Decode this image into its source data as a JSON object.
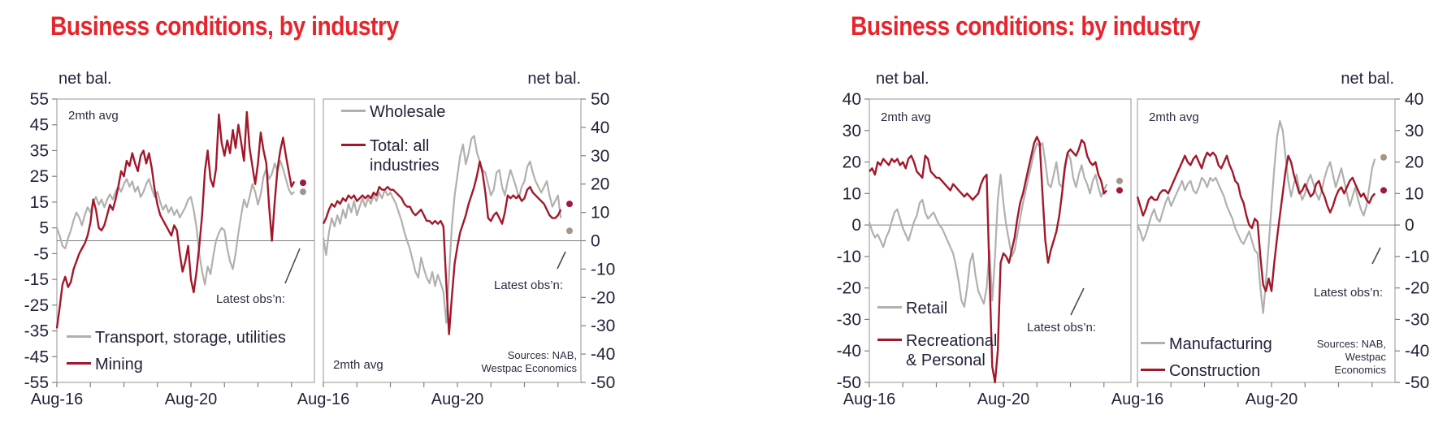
{
  "titles": {
    "left": "Business conditions, by industry",
    "right": "Business conditions: by industry"
  },
  "colors": {
    "title": "#e8232b",
    "text": "#23223a",
    "gray_line": "#b1b0af",
    "red_line": "#a2182a",
    "gray_dot": "#a39689",
    "red_dot": "#9e1a3e",
    "axis": "#a6a6a6",
    "zero_line": "#808080",
    "annotation": "#4a4a52"
  },
  "chart_data": [
    {
      "type": "line",
      "panel": "transport-mining",
      "unit_label": "net bal.",
      "avg_label": "2mth avg",
      "latest_label": "Latest obs’n:",
      "ylim": [
        -55,
        55
      ],
      "y_ticks": [
        55,
        45,
        35,
        25,
        15,
        5,
        -5,
        -15,
        -25,
        -35,
        -45,
        -55
      ],
      "x_labels": [
        {
          "text": "Aug-16",
          "month": 0
        },
        {
          "text": "Aug-20",
          "month": 48
        }
      ],
      "x_tick_interval_months": 12,
      "x_tick_count": 8,
      "series": [
        {
          "name": "Transport, storage, utilities",
          "color_key": "gray_line",
          "values": [
            5,
            2,
            -2,
            -3,
            1,
            4,
            8,
            11,
            9,
            6,
            10,
            13,
            11,
            15,
            17,
            14,
            16,
            13,
            16,
            18,
            16,
            19,
            21,
            19,
            22,
            24,
            21,
            23,
            19,
            21,
            17,
            19,
            22,
            24,
            20,
            17,
            19,
            15,
            12,
            14,
            11,
            13,
            10,
            12,
            9,
            11,
            13,
            16,
            17,
            12,
            5,
            -5,
            -12,
            -17,
            -10,
            -13,
            -6,
            0,
            3,
            5,
            4,
            -3,
            -8,
            -11,
            -5,
            3,
            10,
            16,
            13,
            17,
            22,
            19,
            14,
            18,
            25,
            28,
            24,
            26,
            30,
            27,
            31,
            28,
            24,
            20,
            18,
            19
          ]
        },
        {
          "name": "Mining",
          "color_key": "red_line",
          "values": [
            -34,
            -26,
            -17,
            -14,
            -18,
            -16,
            -11,
            -8,
            -5,
            -3,
            -1,
            2,
            7,
            16,
            12,
            5,
            4,
            6,
            10,
            14,
            12,
            16,
            21,
            27,
            25,
            31,
            29,
            34,
            30,
            27,
            33,
            35,
            30,
            34,
            28,
            20,
            14,
            10,
            8,
            6,
            4,
            2,
            6,
            4,
            -5,
            -12,
            -8,
            -2,
            -15,
            -20,
            -12,
            -2,
            10,
            27,
            35,
            24,
            21,
            28,
            49,
            38,
            33,
            39,
            34,
            43,
            36,
            45,
            38,
            31,
            50,
            36,
            29,
            22,
            30,
            42,
            35,
            30,
            13,
            0,
            15,
            28,
            35,
            40,
            33,
            27,
            21,
            23
          ]
        }
      ],
      "latest_dots": [
        {
          "series": "Mining",
          "value": 22.5,
          "color_key": "red_dot"
        },
        {
          "series": "Transport, storage, utilities",
          "value": 19,
          "color_key": "gray_dot"
        }
      ]
    },
    {
      "type": "line",
      "panel": "wholesale-total",
      "unit_label": "net bal.",
      "avg_label": "2mth avg",
      "latest_label": "Latest obs’n:",
      "sources": "Sources: NAB,\nWestpac Economics",
      "ylim": [
        -50,
        50
      ],
      "y_ticks": [
        50,
        40,
        30,
        20,
        10,
        0,
        -10,
        -20,
        -30,
        -40,
        -50
      ],
      "x_labels": [
        {
          "text": "Aug-16",
          "month": 0
        },
        {
          "text": "Aug-20",
          "month": 48
        }
      ],
      "x_tick_interval_months": 12,
      "x_tick_count": 8,
      "series": [
        {
          "name": "Wholesale",
          "color_key": "gray_line",
          "values": [
            1,
            -5,
            3,
            8,
            5,
            9,
            6,
            11,
            8,
            13,
            10,
            14,
            9,
            12,
            15,
            12,
            15,
            13,
            16,
            14,
            17,
            15,
            18,
            16,
            17,
            15,
            13,
            10,
            7,
            3,
            0,
            -3,
            -7,
            -11,
            -13,
            -6,
            -10,
            -13,
            -15,
            -11,
            -16,
            -12,
            -15,
            -18,
            -29,
            -12,
            5,
            16,
            23,
            30,
            34,
            27,
            31,
            36,
            37,
            31,
            28,
            25,
            24,
            20,
            16,
            18,
            24,
            25,
            19,
            16,
            21,
            25,
            22,
            19,
            15,
            19,
            21,
            26,
            28,
            24,
            21,
            19,
            17,
            19,
            21,
            16,
            12,
            14,
            16,
            8
          ]
        },
        {
          "name": "Total: all industries",
          "legend_label": "Total: all\nindustries",
          "color_key": "red_line",
          "values": [
            6,
            8,
            11,
            13,
            12,
            14,
            13,
            15,
            14,
            16,
            15,
            16,
            14,
            15,
            16,
            15,
            16,
            15,
            17,
            16,
            19,
            18,
            18,
            19,
            18,
            18,
            17,
            16,
            15,
            13,
            12,
            12,
            10,
            9,
            10,
            11,
            9,
            7,
            7,
            6,
            7,
            6,
            7,
            5,
            -15,
            -33,
            -20,
            -8,
            -2,
            3,
            6,
            9,
            13,
            16,
            19,
            23,
            28,
            24,
            17,
            8,
            7,
            9,
            10,
            8,
            6,
            10,
            16,
            15,
            16,
            15,
            16,
            14,
            15,
            18,
            19,
            17,
            16,
            15,
            14,
            13,
            11,
            9,
            8,
            8,
            9,
            11
          ]
        }
      ],
      "latest_dots": [
        {
          "series": "Total: all industries",
          "value": 13,
          "color_key": "red_dot"
        },
        {
          "series": "Wholesale",
          "value": 3.5,
          "color_key": "gray_dot"
        }
      ]
    },
    {
      "type": "line",
      "panel": "retail-recreational",
      "unit_label": "net bal.",
      "avg_label": "2mth avg",
      "latest_label": "Latest obs’n:",
      "ylim": [
        -50,
        40
      ],
      "y_ticks": [
        40,
        30,
        20,
        10,
        0,
        -10,
        -20,
        -30,
        -40,
        -50
      ],
      "x_labels": [
        {
          "text": "Aug-16",
          "month": 0
        },
        {
          "text": "Aug-20",
          "month": 48
        }
      ],
      "x_tick_interval_months": 12,
      "x_tick_count": 8,
      "series": [
        {
          "name": "Retail",
          "color_key": "gray_line",
          "values": [
            1,
            -2,
            -4,
            -3,
            -5,
            -7,
            -4,
            -2,
            1,
            4,
            5,
            2,
            -1,
            -3,
            -5,
            -2,
            1,
            3,
            7,
            8,
            4,
            2,
            3,
            4,
            2,
            0,
            -1,
            -3,
            -5,
            -7,
            -9,
            -13,
            -18,
            -24,
            -26,
            -20,
            -12,
            -9,
            -16,
            -21,
            -23,
            -25,
            -20,
            -8,
            -24,
            -10,
            8,
            16,
            7,
            0,
            -5,
            -10,
            -8,
            -3,
            2,
            7,
            11,
            15,
            19,
            23,
            26,
            25,
            26,
            20,
            13,
            12,
            16,
            20,
            13,
            12,
            19,
            23,
            21,
            15,
            12,
            16,
            19,
            15,
            13,
            10,
            14,
            16,
            12,
            9,
            11,
            13
          ]
        },
        {
          "name": "Recreational & Personal",
          "legend_label": "Recreational\n& Personal",
          "color_key": "red_line",
          "values": [
            17,
            18,
            16,
            20,
            19,
            21,
            20,
            19,
            21,
            20,
            21,
            19,
            20,
            18,
            21,
            22,
            20,
            17,
            16,
            15,
            22,
            21,
            17,
            16,
            15,
            15,
            14,
            13,
            12,
            11,
            13,
            12,
            11,
            10,
            9,
            10,
            9,
            8,
            9,
            10,
            13,
            15,
            16,
            -15,
            -45,
            -52,
            -40,
            -12,
            -9,
            -10,
            -12,
            -8,
            -4,
            2,
            7,
            10,
            14,
            18,
            22,
            26,
            28,
            26,
            10,
            -5,
            -12,
            -8,
            -5,
            -2,
            3,
            10,
            18,
            23,
            24,
            23,
            22,
            24,
            27,
            26,
            22,
            20,
            19,
            20,
            16,
            14,
            10,
            11
          ]
        }
      ],
      "latest_dots": [
        {
          "series": "Retail",
          "value": 14,
          "color_key": "gray_dot"
        },
        {
          "series": "Recreational & Personal",
          "value": 11,
          "color_key": "red_dot"
        }
      ]
    },
    {
      "type": "line",
      "panel": "manufacturing-construction",
      "unit_label": "net bal.",
      "avg_label": "2mth avg",
      "latest_label": "Latest obs’n:",
      "sources": "Sources: NAB,\nWestpac\nEconomics",
      "ylim": [
        -50,
        40
      ],
      "y_ticks": [
        40,
        30,
        20,
        10,
        0,
        -10,
        -20,
        -30,
        -40,
        -50
      ],
      "x_labels": [
        {
          "text": "Aug-16",
          "month": 0
        },
        {
          "text": "Aug-20",
          "month": 48
        }
      ],
      "x_tick_interval_months": 12,
      "x_tick_count": 8,
      "series": [
        {
          "name": "Manufacturing",
          "color_key": "gray_line",
          "values": [
            0,
            -2,
            -5,
            -3,
            0,
            3,
            5,
            2,
            1,
            4,
            7,
            9,
            6,
            8,
            10,
            12,
            14,
            11,
            13,
            14,
            11,
            10,
            12,
            15,
            14,
            12,
            15,
            14,
            15,
            13,
            11,
            9,
            6,
            4,
            2,
            -1,
            -3,
            -5,
            -6,
            -4,
            -2,
            -5,
            -8,
            -9,
            -20,
            -28,
            -18,
            -6,
            6,
            18,
            28,
            33,
            30,
            22,
            14,
            9,
            13,
            16,
            11,
            8,
            10,
            14,
            16,
            13,
            10,
            8,
            11,
            15,
            18,
            20,
            16,
            12,
            15,
            18,
            14,
            10,
            6,
            9,
            12,
            8,
            5,
            3,
            6,
            12,
            18,
            21
          ]
        },
        {
          "name": "Construction",
          "color_key": "red_line",
          "values": [
            9,
            6,
            3,
            5,
            8,
            9,
            8,
            8,
            10,
            11,
            11,
            10,
            12,
            14,
            16,
            18,
            20,
            22,
            20,
            19,
            21,
            22,
            20,
            18,
            21,
            23,
            22,
            23,
            22,
            19,
            18,
            20,
            22,
            19,
            17,
            14,
            13,
            9,
            7,
            3,
            0,
            -1,
            2,
            1,
            -10,
            -19,
            -21,
            -17,
            -21,
            -12,
            -4,
            3,
            10,
            17,
            22,
            20,
            16,
            13,
            10,
            11,
            13,
            11,
            9,
            10,
            13,
            14,
            11,
            9,
            6,
            4,
            6,
            9,
            11,
            12,
            10,
            12,
            14,
            15,
            13,
            11,
            9,
            10,
            8,
            7,
            9,
            10
          ]
        }
      ],
      "latest_dots": [
        {
          "series": "Manufacturing",
          "value": 21.5,
          "color_key": "gray_dot"
        },
        {
          "series": "Construction",
          "value": 11,
          "color_key": "red_dot"
        }
      ]
    }
  ]
}
